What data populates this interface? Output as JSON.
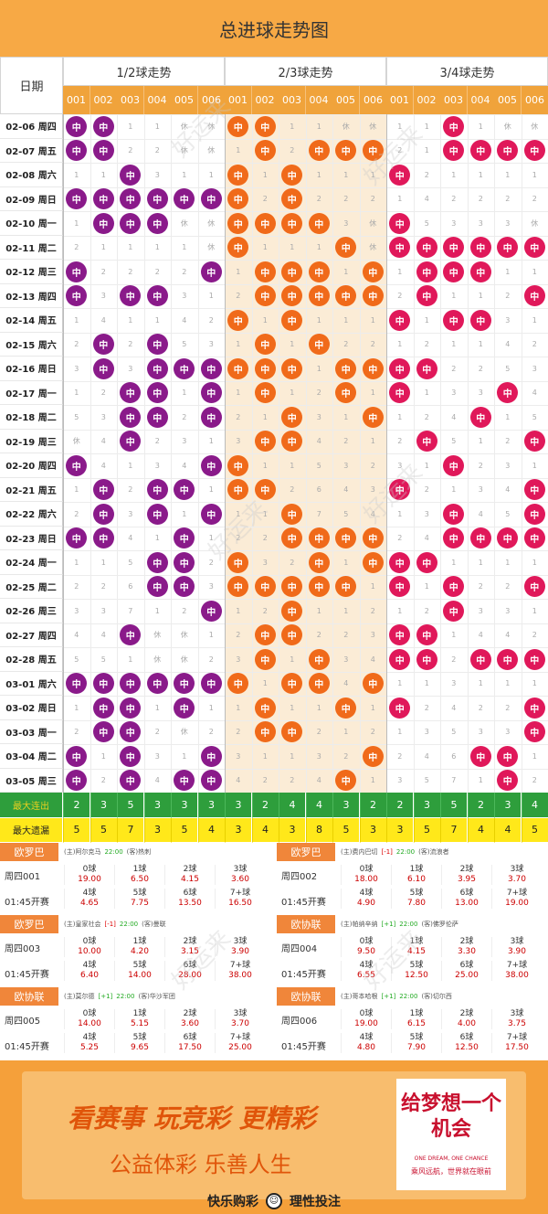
{
  "title": "总进球走势图",
  "header": {
    "date_label": "日期",
    "groups": [
      "1/2球走势",
      "2/3球走势",
      "3/4球走势"
    ],
    "nums": [
      "001",
      "002",
      "003",
      "004",
      "005",
      "006"
    ],
    "hit_label": "中"
  },
  "colors": {
    "g0": "#8a1a8a",
    "g1": "#f06a1a",
    "g2": "#e0185a"
  },
  "watermark": "好运来",
  "dates": [
    "02-06 周四",
    "02-07 周五",
    "02-08 周六",
    "02-09 周日",
    "02-10 周一",
    "02-11 周二",
    "02-12 周三",
    "02-13 周四",
    "02-14 周五",
    "02-15 周六",
    "02-16 周日",
    "02-17 周一",
    "02-18 周二",
    "02-19 周三",
    "02-20 周四",
    "02-21 周五",
    "02-22 周六",
    "02-23 周日",
    "02-24 周一",
    "02-25 周二",
    "02-26 周三",
    "02-27 周四",
    "02-28 周五",
    "03-01 周六",
    "03-02 周日",
    "03-03 周一",
    "03-04 周二",
    "03-05 周三"
  ],
  "grid": [
    [
      [
        "H",
        "H",
        "1",
        "1",
        "休",
        "休"
      ],
      [
        "H",
        "H",
        "1",
        "1",
        "休",
        "休"
      ],
      [
        "1",
        "1",
        "H",
        "1",
        "休",
        "休"
      ]
    ],
    [
      [
        "H",
        "H",
        "2",
        "2",
        "休",
        "休"
      ],
      [
        "1",
        "H",
        "2",
        "H",
        "H",
        "H"
      ],
      [
        "2",
        "1",
        "H",
        "H",
        "H",
        "H"
      ]
    ],
    [
      [
        "1",
        "1",
        "H",
        "3",
        "1",
        "1"
      ],
      [
        "H",
        "1",
        "H",
        "1",
        "1",
        "1"
      ],
      [
        "H",
        "2",
        "1",
        "1",
        "1",
        "1"
      ]
    ],
    [
      [
        "H",
        "H",
        "H",
        "H",
        "H",
        "H"
      ],
      [
        "H",
        "2",
        "H",
        "2",
        "2",
        "2"
      ],
      [
        "1",
        "4",
        "2",
        "2",
        "2",
        "2"
      ]
    ],
    [
      [
        "1",
        "H",
        "H",
        "H",
        "休",
        "休"
      ],
      [
        "H",
        "H",
        "H",
        "H",
        "3",
        "休"
      ],
      [
        "H",
        "5",
        "3",
        "3",
        "3",
        "休"
      ]
    ],
    [
      [
        "2",
        "1",
        "1",
        "1",
        "1",
        "休"
      ],
      [
        "H",
        "1",
        "1",
        "1",
        "H",
        "休"
      ],
      [
        "H",
        "H",
        "H",
        "H",
        "H",
        "H"
      ]
    ],
    [
      [
        "H",
        "2",
        "2",
        "2",
        "2",
        "H"
      ],
      [
        "1",
        "H",
        "H",
        "H",
        "1",
        "H"
      ],
      [
        "1",
        "H",
        "H",
        "H",
        "1",
        "1"
      ]
    ],
    [
      [
        "H",
        "3",
        "H",
        "H",
        "3",
        "1"
      ],
      [
        "2",
        "H",
        "H",
        "H",
        "H",
        "H"
      ],
      [
        "2",
        "H",
        "1",
        "1",
        "2",
        "H"
      ]
    ],
    [
      [
        "1",
        "4",
        "1",
        "1",
        "4",
        "2"
      ],
      [
        "H",
        "1",
        "H",
        "1",
        "1",
        "1"
      ],
      [
        "H",
        "1",
        "H",
        "H",
        "3",
        "1"
      ]
    ],
    [
      [
        "2",
        "H",
        "2",
        "H",
        "5",
        "3"
      ],
      [
        "1",
        "H",
        "1",
        "H",
        "2",
        "2"
      ],
      [
        "1",
        "2",
        "1",
        "1",
        "4",
        "2"
      ]
    ],
    [
      [
        "3",
        "H",
        "3",
        "H",
        "H",
        "H"
      ],
      [
        "H",
        "H",
        "H",
        "1",
        "H",
        "H"
      ],
      [
        "H",
        "H",
        "2",
        "2",
        "5",
        "3"
      ]
    ],
    [
      [
        "1",
        "2",
        "H",
        "H",
        "1",
        "H"
      ],
      [
        "1",
        "H",
        "1",
        "2",
        "H",
        "1"
      ],
      [
        "H",
        "1",
        "3",
        "3",
        "H",
        "4"
      ]
    ],
    [
      [
        "5",
        "3",
        "H",
        "H",
        "2",
        "H"
      ],
      [
        "2",
        "1",
        "H",
        "3",
        "1",
        "H"
      ],
      [
        "1",
        "2",
        "4",
        "H",
        "1",
        "5"
      ]
    ],
    [
      [
        "休",
        "4",
        "H",
        "2",
        "3",
        "1"
      ],
      [
        "3",
        "H",
        "H",
        "4",
        "2",
        "1"
      ],
      [
        "2",
        "H",
        "5",
        "1",
        "2",
        "H"
      ]
    ],
    [
      [
        "H",
        "4",
        "1",
        "3",
        "4",
        "H"
      ],
      [
        "H",
        "1",
        "1",
        "5",
        "3",
        "2"
      ],
      [
        "3",
        "1",
        "H",
        "2",
        "3",
        "1"
      ]
    ],
    [
      [
        "1",
        "H",
        "2",
        "H",
        "H",
        "1"
      ],
      [
        "H",
        "H",
        "2",
        "6",
        "4",
        "3"
      ],
      [
        "H",
        "2",
        "1",
        "3",
        "4",
        "H"
      ]
    ],
    [
      [
        "2",
        "H",
        "3",
        "H",
        "1",
        "H"
      ],
      [
        "1",
        "1",
        "H",
        "7",
        "5",
        "4"
      ],
      [
        "1",
        "3",
        "H",
        "4",
        "5",
        "H"
      ]
    ],
    [
      [
        "H",
        "H",
        "4",
        "1",
        "H",
        "1"
      ],
      [
        "2",
        "2",
        "H",
        "H",
        "H",
        "H"
      ],
      [
        "2",
        "4",
        "H",
        "H",
        "H",
        "H"
      ]
    ],
    [
      [
        "1",
        "1",
        "5",
        "H",
        "H",
        "2"
      ],
      [
        "H",
        "3",
        "2",
        "H",
        "1",
        "H"
      ],
      [
        "H",
        "H",
        "1",
        "1",
        "1",
        "1"
      ]
    ],
    [
      [
        "2",
        "2",
        "6",
        "H",
        "H",
        "3"
      ],
      [
        "H",
        "H",
        "H",
        "H",
        "H",
        "1"
      ],
      [
        "H",
        "1",
        "H",
        "2",
        "2",
        "H"
      ]
    ],
    [
      [
        "3",
        "3",
        "7",
        "1",
        "2",
        "H"
      ],
      [
        "1",
        "2",
        "H",
        "1",
        "1",
        "2"
      ],
      [
        "1",
        "2",
        "H",
        "3",
        "3",
        "1"
      ]
    ],
    [
      [
        "4",
        "4",
        "H",
        "休",
        "休",
        "1"
      ],
      [
        "2",
        "H",
        "H",
        "2",
        "2",
        "3"
      ],
      [
        "H",
        "H",
        "1",
        "4",
        "4",
        "2"
      ]
    ],
    [
      [
        "5",
        "5",
        "1",
        "休",
        "休",
        "2"
      ],
      [
        "3",
        "H",
        "1",
        "H",
        "3",
        "4"
      ],
      [
        "H",
        "H",
        "2",
        "H",
        "H",
        "H"
      ]
    ],
    [
      [
        "H",
        "H",
        "H",
        "H",
        "H",
        "H"
      ],
      [
        "H",
        "1",
        "H",
        "H",
        "4",
        "H"
      ],
      [
        "1",
        "1",
        "3",
        "1",
        "1",
        "1"
      ]
    ],
    [
      [
        "1",
        "H",
        "H",
        "1",
        "H",
        "1"
      ],
      [
        "1",
        "H",
        "1",
        "1",
        "H",
        "1"
      ],
      [
        "H",
        "2",
        "4",
        "2",
        "2",
        "H"
      ]
    ],
    [
      [
        "2",
        "H",
        "H",
        "2",
        "休",
        "2"
      ],
      [
        "2",
        "H",
        "H",
        "2",
        "1",
        "2"
      ],
      [
        "1",
        "3",
        "5",
        "3",
        "3",
        "H"
      ]
    ],
    [
      [
        "H",
        "1",
        "H",
        "3",
        "1",
        "H"
      ],
      [
        "3",
        "1",
        "1",
        "3",
        "2",
        "H"
      ],
      [
        "2",
        "4",
        "6",
        "H",
        "H",
        "1"
      ]
    ],
    [
      [
        "H",
        "2",
        "H",
        "4",
        "H",
        "H"
      ],
      [
        "4",
        "2",
        "2",
        "4",
        "H",
        "1"
      ],
      [
        "3",
        "5",
        "7",
        "1",
        "H",
        "2"
      ]
    ]
  ],
  "stats": [
    {
      "label": "最大连出",
      "values": [
        "2",
        "3",
        "5",
        "3",
        "3",
        "3",
        "3",
        "2",
        "4",
        "4",
        "3",
        "2",
        "2",
        "3",
        "5",
        "2",
        "3",
        "4"
      ]
    },
    {
      "label": "最大遗漏",
      "values": [
        "5",
        "5",
        "7",
        "3",
        "5",
        "4",
        "3",
        "4",
        "3",
        "8",
        "5",
        "3",
        "3",
        "5",
        "7",
        "4",
        "4",
        "5"
      ]
    }
  ],
  "matches": [
    {
      "league": "欧罗巴",
      "no": "周四001",
      "time": "01:45开赛",
      "home": "(主)阿尔克马",
      "handicap": "",
      "kick": "22:00",
      "away": "(客)热刺",
      "odds": [
        [
          "0球",
          "19.00"
        ],
        [
          "1球",
          "6.50"
        ],
        [
          "2球",
          "4.15"
        ],
        [
          "3球",
          "3.60"
        ],
        [
          "4球",
          "4.65"
        ],
        [
          "5球",
          "7.75"
        ],
        [
          "6球",
          "13.50"
        ],
        [
          "7+球",
          "16.50"
        ]
      ]
    },
    {
      "league": "欧罗巴",
      "no": "周四002",
      "time": "01:45开赛",
      "home": "(主)费内巴切",
      "handicap": "[-1]",
      "kick": "22:00",
      "away": "(客)流浪者",
      "odds": [
        [
          "0球",
          "18.00"
        ],
        [
          "1球",
          "6.10"
        ],
        [
          "2球",
          "3.95"
        ],
        [
          "3球",
          "3.70"
        ],
        [
          "4球",
          "4.90"
        ],
        [
          "5球",
          "7.80"
        ],
        [
          "6球",
          "13.00"
        ],
        [
          "7+球",
          "19.00"
        ]
      ]
    },
    {
      "league": "欧罗巴",
      "no": "周四003",
      "time": "01:45开赛",
      "home": "(主)皇家社会",
      "handicap": "[-1]",
      "kick": "22:00",
      "away": "(客)曼联",
      "odds": [
        [
          "0球",
          "10.00"
        ],
        [
          "1球",
          "4.20"
        ],
        [
          "2球",
          "3.15"
        ],
        [
          "3球",
          "3.90"
        ],
        [
          "4球",
          "6.40"
        ],
        [
          "5球",
          "14.00"
        ],
        [
          "6球",
          "28.00"
        ],
        [
          "7+球",
          "38.00"
        ]
      ]
    },
    {
      "league": "欧协联",
      "no": "周四004",
      "time": "01:45开赛",
      "home": "(主)帕纳辛纳",
      "handicap": "[+1]",
      "kick": "22:00",
      "away": "(客)佛罗伦萨",
      "odds": [
        [
          "0球",
          "9.50"
        ],
        [
          "1球",
          "4.15"
        ],
        [
          "2球",
          "3.30"
        ],
        [
          "3球",
          "3.90"
        ],
        [
          "4球",
          "6.55"
        ],
        [
          "5球",
          "12.50"
        ],
        [
          "6球",
          "25.00"
        ],
        [
          "7+球",
          "38.00"
        ]
      ]
    },
    {
      "league": "欧协联",
      "no": "周四005",
      "time": "01:45开赛",
      "home": "(主)莫尔德",
      "handicap": "[+1]",
      "kick": "22:00",
      "away": "(客)华沙军团",
      "odds": [
        [
          "0球",
          "14.00"
        ],
        [
          "1球",
          "5.15"
        ],
        [
          "2球",
          "3.60"
        ],
        [
          "3球",
          "3.70"
        ],
        [
          "4球",
          "5.25"
        ],
        [
          "5球",
          "9.65"
        ],
        [
          "6球",
          "17.50"
        ],
        [
          "7+球",
          "25.00"
        ]
      ]
    },
    {
      "league": "欧协联",
      "no": "周四006",
      "time": "01:45开赛",
      "home": "(主)哥本哈根",
      "handicap": "[+1]",
      "kick": "22:00",
      "away": "(客)切尔西",
      "odds": [
        [
          "0球",
          "19.00"
        ],
        [
          "1球",
          "6.15"
        ],
        [
          "2球",
          "4.00"
        ],
        [
          "3球",
          "3.75"
        ],
        [
          "4球",
          "4.80"
        ],
        [
          "5球",
          "7.90"
        ],
        [
          "6球",
          "12.50"
        ],
        [
          "7+球",
          "17.50"
        ]
      ]
    }
  ],
  "ad": {
    "slogan1": "看赛事 玩竞彩 更精彩",
    "slogan2": "公益体彩 乐善人生",
    "footer_left": "快乐购彩",
    "footer_right": "理性投注",
    "dream_title": "给梦想一个机会",
    "dream_en": "ONE DREAM, ONE CHANCE",
    "dream_cn": "乘风远航，世界就在眼前"
  }
}
